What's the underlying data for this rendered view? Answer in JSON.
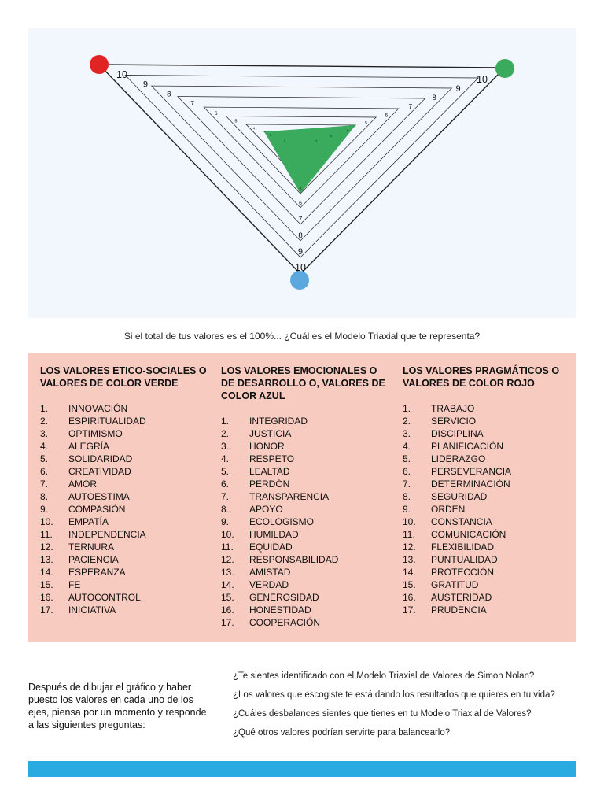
{
  "diagram": {
    "top_labels": [
      "10",
      "9",
      "8",
      "7",
      "6",
      "5",
      "4",
      "3",
      "2"
    ],
    "bottom_labels": [
      "10",
      "9",
      "8",
      "7",
      "6",
      "5"
    ],
    "markers": {
      "left": {
        "color": "#e02424"
      },
      "right": {
        "color": "#3aaa5c"
      },
      "bottom": {
        "color": "#5aa8de"
      }
    },
    "plotted_values": {
      "red": 3,
      "green": 4,
      "blue": 5
    },
    "fill_color": "#3aaa5c"
  },
  "caption": "Si el total de tus valores es el 100%... ¿Cuál es el Modelo Triaxial que te representa?",
  "columns": [
    {
      "title": "LOS VALORES ETICO-SOCIALES O VALORES DE COLOR VERDE",
      "items": [
        "INNOVACIÓN",
        "ESPIRITUALIDAD",
        "OPTIMISMO",
        "ALEGRÍA",
        "SOLIDARIDAD",
        "CREATIVIDAD",
        "AMOR",
        "AUTOESTIMA",
        "COMPASIÓN",
        "EMPATÍA",
        "INDEPENDENCIA",
        "TERNURA",
        "PACIENCIA",
        "ESPERANZA",
        "FE",
        "AUTOCONTROL",
        "INICIATIVA"
      ]
    },
    {
      "title": "LOS VALORES EMOCIONALES O DE DESARROLLO O, VALORES DE COLOR AZUL",
      "items": [
        "INTEGRIDAD",
        "JUSTICIA",
        "HONOR",
        "RESPETO",
        "LEALTAD",
        "PERDÓN",
        "TRANSPARENCIA",
        "APOYO",
        "ECOLOGISMO",
        "HUMILDAD",
        "EQUIDAD",
        "RESPONSABILIDAD",
        "AMISTAD",
        "VERDAD",
        "GENEROSIDAD",
        "HONESTIDAD",
        "COOPERACIÓN"
      ]
    },
    {
      "title": "LOS VALORES PRAGMÁTICOS O VALORES DE COLOR ROJO",
      "items": [
        "TRABAJO",
        "SERVICIO",
        "DISCIPLINA",
        "PLANIFICACIÓN",
        "LIDERAZGO",
        "PERSEVERANCIA",
        "DETERMINACIÓN",
        "SEGURIDAD",
        "ORDEN",
        "CONSTANCIA",
        "COMUNICACIÓN",
        "FLEXIBILIDAD",
        "PUNTUALIDAD",
        "PROTECCIÓN",
        "GRATITUD",
        "AUSTERIDAD",
        "PRUDENCIA"
      ]
    }
  ],
  "intro": "Después de dibujar el gráfico y haber puesto los valores en cada uno de los ejes, piensa por un momento y responde a las siguientes preguntas:",
  "questions": [
    "¿Te sientes identificado con el Modelo Triaxial de Valores de Simon Nolan?",
    "¿Los valores que escogiste te está dando los resultados que quieres en tu vida?",
    "¿Cuáles desbalances sientes que tienes en tu Modelo Triaxial de Valores?",
    "¿Qué otros valores podrían servirte para balancearlo?"
  ],
  "colors": {
    "diagram_bg": "#f2f6fd",
    "values_bg": "#f8cbc1",
    "footer_bar": "#29abe2"
  }
}
